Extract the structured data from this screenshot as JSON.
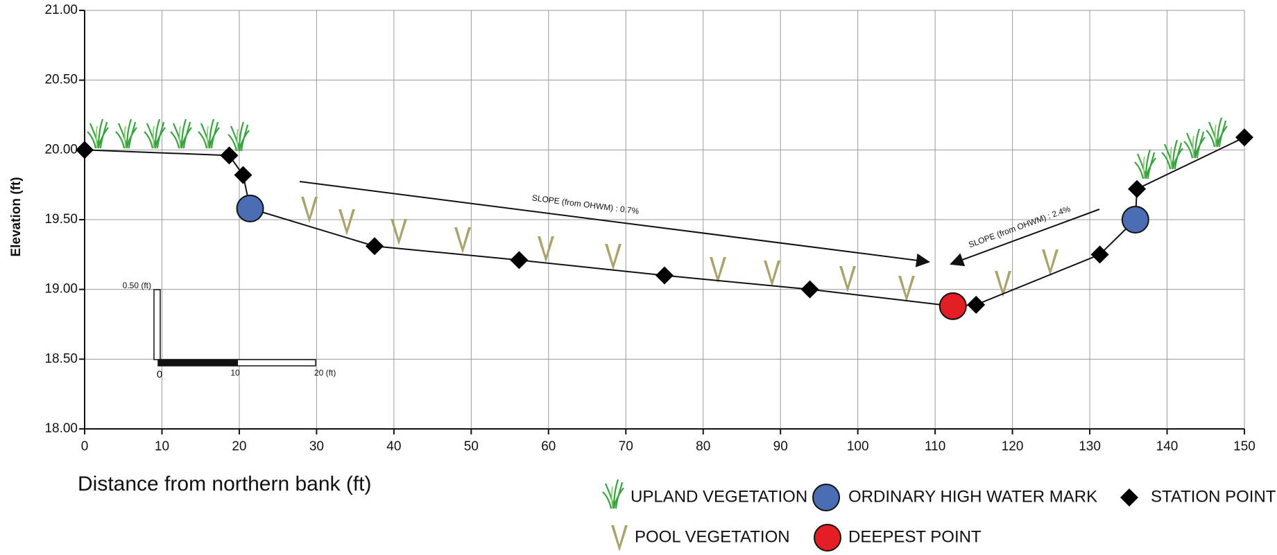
{
  "chart_data": {
    "type": "line",
    "x_label": "Distance from northern bank (ft)",
    "y_label": "Elevation (ft)",
    "xlim": [
      0,
      150
    ],
    "xticks": [
      0,
      10,
      20,
      30,
      40,
      50,
      60,
      70,
      80,
      90,
      100,
      110,
      120,
      130,
      140,
      150
    ],
    "ylim": [
      18,
      21
    ],
    "yticks": [
      {
        "value": 18,
        "label": "18.00"
      },
      {
        "value": 18.5,
        "label": "18.50"
      },
      {
        "value": 19,
        "label": "19.00"
      },
      {
        "value": 19.5,
        "label": "19.50"
      },
      {
        "value": 20,
        "label": "20.00"
      },
      {
        "value": 20.5,
        "label": "20.50"
      },
      {
        "value": 21,
        "label": "21.00"
      }
    ],
    "grid": true,
    "line_color": "#111111",
    "series": [
      {
        "name": "STATION POINT",
        "color": "#000000",
        "marker": "diamond",
        "x": [
          0,
          18.7,
          20.5,
          37.5,
          56.2,
          75,
          93.8,
          115.3,
          131.3,
          136.1,
          150
        ],
        "values": [
          20.0,
          19.96,
          19.82,
          19.31,
          19.21,
          19.1,
          19.0,
          18.89,
          19.25,
          19.72,
          20.09
        ]
      },
      {
        "name": "ORDINARY HIGH WATER MARK",
        "color": "#4a6db3",
        "marker": "circle",
        "x": [
          21.4,
          135.9
        ],
        "values": [
          19.58,
          19.5
        ]
      },
      {
        "name": "DEEPEST POINT",
        "color": "#e31e24",
        "marker": "circle",
        "x": [
          112.3
        ],
        "values": [
          18.88
        ]
      }
    ],
    "legend_symbols": [
      "UPLAND VEGETATION",
      "POOL VEGETATION"
    ],
    "annotations": [
      "SLOPE (from OHWM) : 0.7%",
      "SLOPE (from OHWM) : 2.4%"
    ],
    "scale_bar": [
      "0.50 (ft)",
      "0",
      "10",
      "20 (ft)"
    ]
  }
}
